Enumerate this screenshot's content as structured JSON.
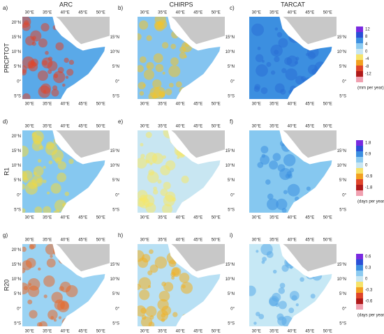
{
  "columns": [
    "ARC",
    "CHIRPS",
    "TARCAT"
  ],
  "rows": [
    {
      "label": "PRCPTOT",
      "colorbar": {
        "ticks": [
          "12",
          "8",
          "4",
          "0",
          "-4",
          "-8",
          "-12"
        ],
        "unit": "(mm per year)"
      }
    },
    {
      "label": "R1",
      "colorbar": {
        "ticks": [
          "1.8",
          "0.9",
          "0",
          "-0.9",
          "-1.8"
        ],
        "unit": "(days per year)"
      }
    },
    {
      "label": "R20",
      "colorbar": {
        "ticks": [
          "0.6",
          "0.3",
          "0",
          "-0.3",
          "-0.6"
        ],
        "unit": "(days per year)"
      }
    }
  ],
  "panels": [
    "a)",
    "b)",
    "c)",
    "d)",
    "e)",
    "f)",
    "g)",
    "h)",
    "i)"
  ],
  "lon_labels": [
    "30°E",
    "35°E",
    "40°E",
    "45°E",
    "50°E"
  ],
  "lat_labels_left": [
    "20°N",
    "15°N",
    "10°N",
    "5°N",
    "0°",
    "5°S"
  ],
  "lat_labels_right": [
    "15°N",
    "10°N",
    "5°N",
    "0°",
    "5°S"
  ]
}
